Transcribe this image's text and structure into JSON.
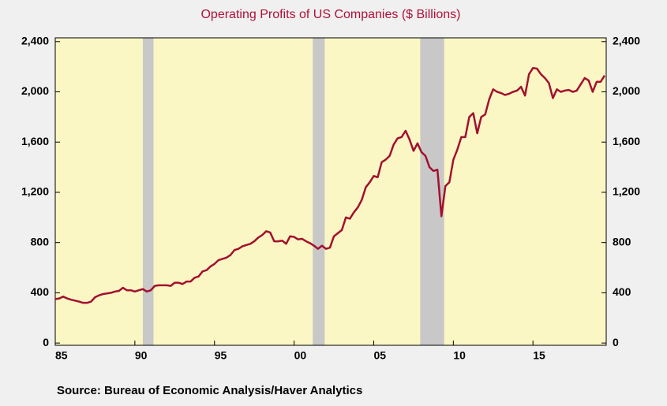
{
  "chart_data": {
    "type": "line",
    "title": "Operating Profits of US Companies ($ Billions)",
    "source": "Source:  Bureau of Economic Analysis/Haver Analytics",
    "x": [
      1985.0,
      1985.25,
      1985.5,
      1985.75,
      1986.0,
      1986.5,
      1986.75,
      1987.0,
      1987.25,
      1987.5,
      1987.75,
      1988.0,
      1988.5,
      1988.75,
      1989.0,
      1989.25,
      1989.5,
      1989.75,
      1990.0,
      1990.25,
      1990.5,
      1990.75,
      1991.0,
      1991.25,
      1991.5,
      1992.0,
      1992.25,
      1992.5,
      1992.75,
      1993.0,
      1993.25,
      1993.5,
      1993.75,
      1994.0,
      1994.25,
      1994.5,
      1994.75,
      1995.0,
      1995.25,
      1995.5,
      1995.75,
      1996.0,
      1996.25,
      1996.5,
      1996.75,
      1997.0,
      1997.25,
      1997.5,
      1997.75,
      1998.0,
      1998.25,
      1998.5,
      1998.75,
      1999.0,
      1999.25,
      1999.5,
      1999.75,
      2000.0,
      2000.25,
      2000.5,
      2000.75,
      2001.0,
      2001.25,
      2001.5,
      2001.75,
      2002.0,
      2002.25,
      2002.5,
      2002.75,
      2003.0,
      2003.25,
      2003.5,
      2003.75,
      2004.0,
      2004.25,
      2004.5,
      2004.75,
      2005.0,
      2005.25,
      2005.5,
      2005.75,
      2006.0,
      2006.25,
      2006.5,
      2006.75,
      2007.0,
      2007.25,
      2007.5,
      2007.75,
      2008.0,
      2008.25,
      2008.5,
      2008.75,
      2009.0,
      2009.25,
      2009.5,
      2009.75,
      2010.0,
      2010.25,
      2010.5,
      2010.75,
      2011.0,
      2011.25,
      2011.5,
      2011.75,
      2012.0,
      2012.25,
      2012.5,
      2012.75,
      2013.0,
      2013.25,
      2013.5,
      2013.75,
      2014.0,
      2014.25,
      2014.5,
      2014.75,
      2015.0,
      2015.25,
      2015.5,
      2015.75,
      2016.0,
      2016.25,
      2016.5,
      2016.75,
      2017.0,
      2017.25,
      2017.5,
      2017.75,
      2018.0,
      2018.25,
      2018.5,
      2018.75,
      2019.0,
      2019.25,
      2019.5
    ],
    "series": [
      {
        "color": "#a3102f",
        "values": [
          350,
          355,
          370,
          355,
          345,
          330,
          320,
          320,
          330,
          365,
          380,
          390,
          400,
          410,
          415,
          440,
          420,
          420,
          410,
          420,
          430,
          410,
          420,
          455,
          460,
          460,
          455,
          480,
          480,
          470,
          490,
          490,
          520,
          530,
          570,
          580,
          610,
          630,
          660,
          670,
          680,
          700,
          740,
          750,
          770,
          780,
          790,
          810,
          840,
          860,
          890,
          880,
          810,
          810,
          815,
          790,
          850,
          845,
          825,
          830,
          810,
          795,
          775,
          750,
          775,
          750,
          760,
          850,
          875,
          900,
          1000,
          990,
          1040,
          1080,
          1140,
          1240,
          1280,
          1330,
          1320,
          1440,
          1460,
          1490,
          1580,
          1630,
          1640,
          1690,
          1620,
          1530,
          1590,
          1520,
          1490,
          1400,
          1370,
          1380,
          1010,
          1250,
          1280,
          1460,
          1540,
          1640,
          1640,
          1800,
          1830,
          1670,
          1800,
          1820,
          1940,
          2020,
          2000,
          1990,
          1975,
          1985,
          2000,
          2010,
          2040,
          1970,
          2140,
          2190,
          2185,
          2140,
          2110,
          2070,
          1950,
          2020,
          2000,
          2010,
          2015,
          2000,
          2010,
          2060,
          2110,
          2090,
          2000,
          2080,
          2080,
          2130
        ]
      }
    ],
    "recessions": [
      [
        1990.5,
        1991.17
      ],
      [
        2001.17,
        2001.92
      ],
      [
        2007.92,
        2009.42
      ]
    ],
    "xlim": [
      1985,
      2019.6
    ],
    "xticks": [
      {
        "value": 1985,
        "label": "85"
      },
      {
        "value": 1990,
        "label": "90"
      },
      {
        "value": 1995,
        "label": "95"
      },
      {
        "value": 2000,
        "label": "00"
      },
      {
        "value": 2005,
        "label": "05"
      },
      {
        "value": 2010,
        "label": "10"
      },
      {
        "value": 2015,
        "label": "15"
      }
    ],
    "ylim": [
      -18,
      2430
    ],
    "yticks": [
      0,
      400,
      800,
      {
        "value": 1200,
        "label": "1,200"
      },
      {
        "value": 1600,
        "label": "1,600"
      },
      {
        "value": 2000,
        "label": "2,000"
      },
      {
        "value": 2400,
        "label": "2,400"
      }
    ],
    "y2lim": [
      -18,
      2430
    ],
    "y2ticks": [
      0,
      400,
      800,
      {
        "value": 1200,
        "label": "1,200"
      },
      {
        "value": 1600,
        "label": "1,600"
      },
      {
        "value": 2000,
        "label": "2,000"
      },
      {
        "value": 2400,
        "label": "2,400"
      }
    ],
    "grid": false
  }
}
